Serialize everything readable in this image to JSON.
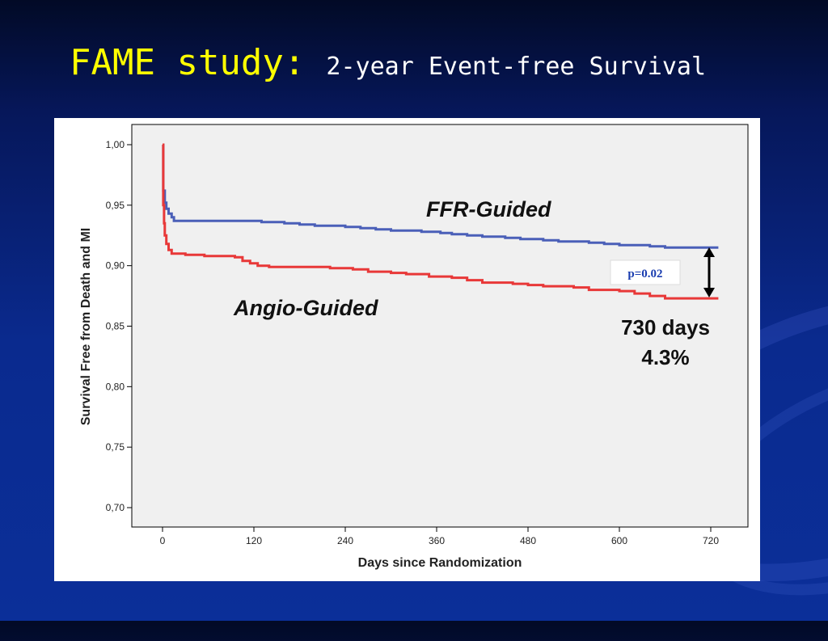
{
  "slide": {
    "title_main": "FAME study:",
    "title_sub": "2-year Event-free Survival",
    "title_color": "#ffff00",
    "background_color": "#0a2a8e"
  },
  "chart_data": {
    "type": "line",
    "xlabel": "Days since Randomization",
    "ylabel": "Survival Free from Death and MI",
    "xlim": [
      0,
      730
    ],
    "ylim": [
      0.7,
      1.0
    ],
    "x_ticks": [
      0,
      120,
      240,
      360,
      480,
      600,
      720
    ],
    "x_tick_labels": [
      "0",
      "120",
      "240",
      "360",
      "480",
      "600",
      "720"
    ],
    "y_ticks": [
      0.7,
      0.75,
      0.8,
      0.85,
      0.9,
      0.95,
      1.0
    ],
    "y_tick_labels": [
      "0,70",
      "0,75",
      "0,80",
      "0,85",
      "0,90",
      "0,95",
      "1,00"
    ],
    "grid": false,
    "plot_background": "#f0f0f0",
    "series": [
      {
        "name": "FFR-Guided",
        "color": "#4a5fb8",
        "x": [
          0,
          1,
          3,
          5,
          8,
          12,
          15,
          60,
          100,
          130,
          160,
          180,
          200,
          240,
          260,
          280,
          300,
          320,
          340,
          365,
          380,
          400,
          420,
          450,
          470,
          500,
          520,
          560,
          580,
          600,
          620,
          640,
          660,
          700,
          730
        ],
        "y": [
          1.0,
          0.962,
          0.952,
          0.947,
          0.943,
          0.94,
          0.937,
          0.937,
          0.937,
          0.936,
          0.935,
          0.934,
          0.933,
          0.932,
          0.931,
          0.93,
          0.929,
          0.929,
          0.928,
          0.927,
          0.926,
          0.925,
          0.924,
          0.923,
          0.922,
          0.921,
          0.92,
          0.919,
          0.918,
          0.917,
          0.917,
          0.916,
          0.915,
          0.915,
          0.915
        ]
      },
      {
        "name": "Angio-Guided",
        "color": "#e83838",
        "x": [
          0,
          1,
          2,
          3,
          5,
          8,
          12,
          30,
          55,
          95,
          105,
          115,
          125,
          140,
          180,
          220,
          250,
          270,
          300,
          320,
          350,
          380,
          400,
          420,
          460,
          480,
          500,
          540,
          560,
          600,
          620,
          640,
          660,
          730
        ],
        "y": [
          1.0,
          0.95,
          0.935,
          0.925,
          0.918,
          0.913,
          0.91,
          0.909,
          0.908,
          0.907,
          0.904,
          0.902,
          0.9,
          0.899,
          0.899,
          0.898,
          0.897,
          0.895,
          0.894,
          0.893,
          0.891,
          0.89,
          0.888,
          0.886,
          0.885,
          0.884,
          0.883,
          0.882,
          0.88,
          0.879,
          0.877,
          0.875,
          0.873,
          0.873
        ]
      }
    ],
    "annotations": {
      "ffr_label": "FFR-Guided",
      "angio_label": "Angio-Guided",
      "p_value": "p=0.02",
      "days": "730 days",
      "difference": "4.3%"
    }
  }
}
